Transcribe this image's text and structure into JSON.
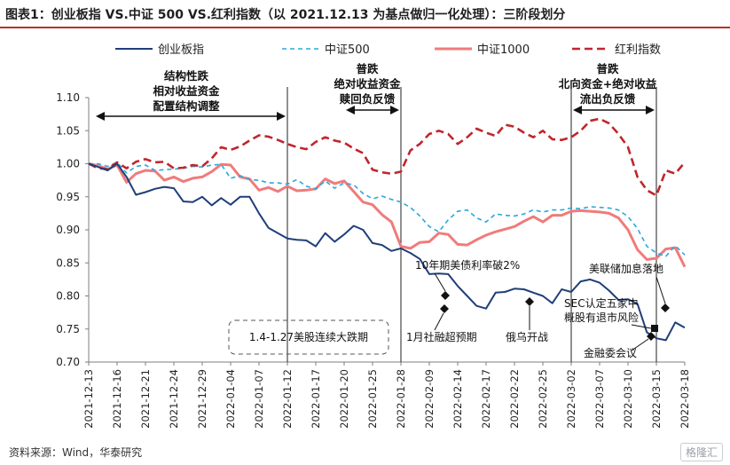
{
  "title": "图表1：创业板指 VS.中证 500 VS.红利指数（以 2021.12.13 为基点做归一化处理）：三阶段划分",
  "source": "资料来源：Wind，华泰研究",
  "watermark": "格隆汇",
  "chart_data": {
    "type": "line",
    "ylim": [
      0.7,
      1.1
    ],
    "yticks": [
      "1.10",
      "1.05",
      "1.00",
      "0.95",
      "0.90",
      "0.85",
      "0.80",
      "0.75",
      "0.70"
    ],
    "x": [
      "2021-12-13",
      "2021-12-14",
      "2021-12-15",
      "2021-12-16",
      "2021-12-17",
      "2021-12-20",
      "2021-12-21",
      "2021-12-22",
      "2021-12-23",
      "2021-12-24",
      "2021-12-27",
      "2021-12-28",
      "2021-12-29",
      "2021-12-30",
      "2021-12-31",
      "2022-01-04",
      "2022-01-05",
      "2022-01-06",
      "2022-01-07",
      "2022-01-10",
      "2022-01-11",
      "2022-01-12",
      "2022-01-13",
      "2022-01-14",
      "2022-01-17",
      "2022-01-18",
      "2022-01-19",
      "2022-01-20",
      "2022-01-21",
      "2022-01-24",
      "2022-01-25",
      "2022-01-26",
      "2022-01-27",
      "2022-01-28",
      "2022-02-07",
      "2022-02-08",
      "2022-02-09",
      "2022-02-10",
      "2022-02-11",
      "2022-02-14",
      "2022-02-15",
      "2022-02-16",
      "2022-02-17",
      "2022-02-18",
      "2022-02-21",
      "2022-02-22",
      "2022-02-23",
      "2022-02-24",
      "2022-02-25",
      "2022-02-28",
      "2022-03-01",
      "2022-03-02",
      "2022-03-03",
      "2022-03-04",
      "2022-03-07",
      "2022-03-08",
      "2022-03-09",
      "2022-03-10",
      "2022-03-11",
      "2022-03-14",
      "2022-03-15",
      "2022-03-16",
      "2022-03-17",
      "2022-03-18"
    ],
    "xticks": [
      "2021-12-13",
      "2021-12-16",
      "2021-12-21",
      "2021-12-24",
      "2021-12-29",
      "2022-01-04",
      "2022-01-07",
      "2022-01-12",
      "2022-01-17",
      "2022-01-20",
      "2022-01-25",
      "2022-01-28",
      "2022-02-09",
      "2022-02-14",
      "2022-02-17",
      "2022-02-22",
      "2022-02-25",
      "2022-03-02",
      "2022-03-07",
      "2022-03-10",
      "2022-03-15",
      "2022-03-18"
    ],
    "series": [
      {
        "name": "创业板指",
        "color": "#1f3f7a",
        "dash": "none",
        "width": 2,
        "values": [
          1.0,
          0.995,
          0.99,
          1.0,
          0.98,
          0.953,
          0.957,
          0.962,
          0.965,
          0.963,
          0.943,
          0.942,
          0.95,
          0.937,
          0.948,
          0.938,
          0.95,
          0.95,
          0.925,
          0.903,
          0.895,
          0.887,
          0.885,
          0.884,
          0.875,
          0.895,
          0.882,
          0.893,
          0.906,
          0.9,
          0.88,
          0.877,
          0.868,
          0.872,
          0.865,
          0.856,
          0.833,
          0.834,
          0.833,
          0.815,
          0.8,
          0.785,
          0.781,
          0.805,
          0.806,
          0.811,
          0.81,
          0.805,
          0.8,
          0.789,
          0.81,
          0.806,
          0.822,
          0.825,
          0.82,
          0.808,
          0.794,
          0.795,
          0.788,
          0.745,
          0.736,
          0.733,
          0.76,
          0.752
        ]
      },
      {
        "name": "中证500",
        "color": "#2aa8dc",
        "dash": "5,4",
        "width": 1.6,
        "values": [
          1.0,
          1.0,
          0.996,
          1.002,
          0.986,
          0.996,
          0.998,
          0.99,
          0.991,
          0.992,
          0.993,
          0.996,
          0.995,
          0.998,
          0.999,
          0.978,
          0.982,
          0.976,
          0.975,
          0.971,
          0.971,
          0.969,
          0.976,
          0.966,
          0.962,
          0.974,
          0.963,
          0.971,
          0.968,
          0.955,
          0.947,
          0.951,
          0.946,
          0.942,
          0.934,
          0.921,
          0.905,
          0.897,
          0.915,
          0.928,
          0.93,
          0.918,
          0.912,
          0.924,
          0.922,
          0.921,
          0.924,
          0.93,
          0.927,
          0.93,
          0.93,
          0.933,
          0.932,
          0.935,
          0.934,
          0.933,
          0.93,
          0.92,
          0.902,
          0.875,
          0.865,
          0.86,
          0.876,
          0.862
        ]
      },
      {
        "name": "中证1000",
        "color": "#f07b7b",
        "dash": "none",
        "width": 3,
        "values": [
          1.0,
          0.997,
          0.992,
          0.998,
          0.972,
          0.985,
          0.99,
          0.989,
          0.975,
          0.98,
          0.973,
          0.978,
          0.98,
          0.988,
          0.999,
          0.998,
          0.98,
          0.977,
          0.96,
          0.964,
          0.958,
          0.966,
          0.959,
          0.96,
          0.962,
          0.977,
          0.97,
          0.974,
          0.958,
          0.942,
          0.938,
          0.923,
          0.912,
          0.875,
          0.872,
          0.881,
          0.882,
          0.895,
          0.893,
          0.878,
          0.877,
          0.885,
          0.892,
          0.897,
          0.901,
          0.905,
          0.913,
          0.92,
          0.912,
          0.922,
          0.922,
          0.928,
          0.929,
          0.928,
          0.927,
          0.925,
          0.918,
          0.9,
          0.87,
          0.855,
          0.857,
          0.871,
          0.873,
          0.844
        ]
      },
      {
        "name": "红利指数",
        "color": "#c0262d",
        "dash": "9,5",
        "width": 2.6,
        "values": [
          1.0,
          0.993,
          0.992,
          1.002,
          0.993,
          1.003,
          1.007,
          1.002,
          1.003,
          0.993,
          0.994,
          0.998,
          0.996,
          1.008,
          1.025,
          1.021,
          1.026,
          1.035,
          1.043,
          1.041,
          1.036,
          1.03,
          1.025,
          1.022,
          1.033,
          1.04,
          1.035,
          1.032,
          1.023,
          1.016,
          0.991,
          0.987,
          0.985,
          0.988,
          1.02,
          1.03,
          1.045,
          1.05,
          1.045,
          1.03,
          1.04,
          1.053,
          1.047,
          1.042,
          1.059,
          1.056,
          1.047,
          1.04,
          1.05,
          1.037,
          1.036,
          1.04,
          1.05,
          1.065,
          1.068,
          1.061,
          1.045,
          1.025,
          0.98,
          0.96,
          0.952,
          0.99,
          0.985,
          1.002
        ]
      }
    ],
    "phases": [
      {
        "lines": [
          "结构性跌",
          "相对收益资金",
          "配置结构调整"
        ],
        "from": "2021-12-13",
        "to": "2022-01-12"
      },
      {
        "lines": [
          "普跌",
          "绝对收益资金",
          "赎回负反馈"
        ],
        "from": "2022-01-20",
        "to": "2022-01-28"
      },
      {
        "lines": [
          "普跌",
          "北向资金+绝对收益",
          "流出负反馈"
        ],
        "from": "2022-03-02",
        "to": "2022-03-15"
      }
    ],
    "vlines": [
      "2022-01-12",
      "2022-01-28",
      "2022-03-02",
      "2022-03-15"
    ],
    "annotations": [
      {
        "text": "1.4-1.27美股连续大跌期",
        "boxed": true
      },
      {
        "text": "10年期美债利率破2%"
      },
      {
        "text": "1月社融超预期"
      },
      {
        "text": "俄乌开战"
      },
      {
        "text": "美联储加息落地"
      },
      {
        "text": "SEC认定五家中"
      },
      {
        "text": "概股有退市风险"
      },
      {
        "text": "金融委会议"
      }
    ]
  }
}
